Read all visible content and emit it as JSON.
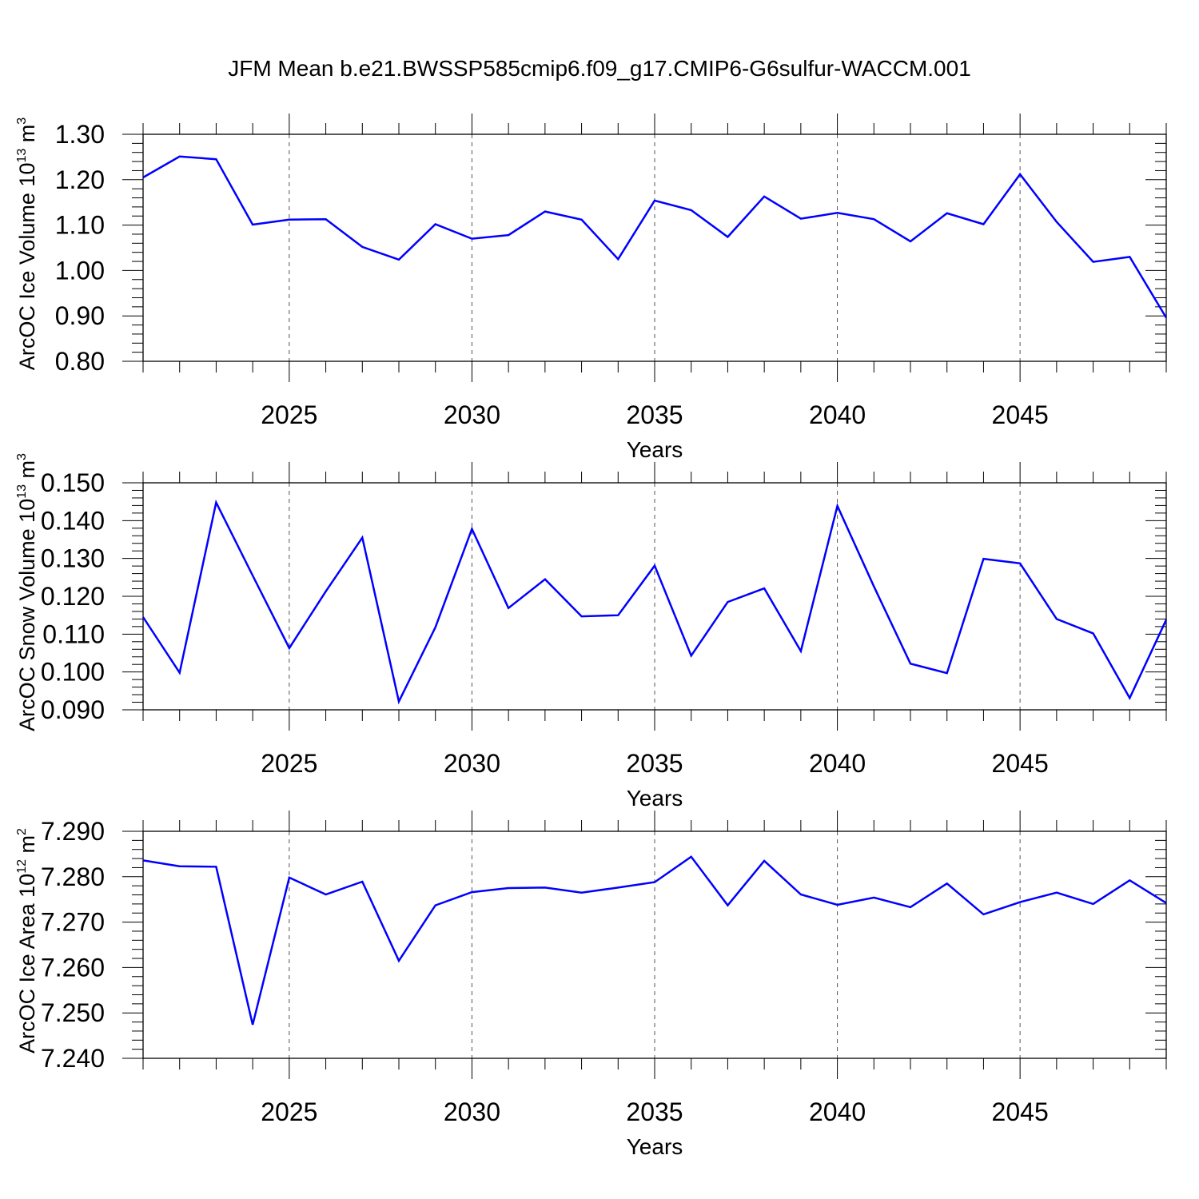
{
  "title": "JFM Mean b.e21.BWSSP585cmip6.f09_g17.CMIP6-G6sulfur-WACCM.001",
  "line_color": "#0000ff",
  "chart_data": [
    {
      "type": "line",
      "ylabel": "ArcOC Ice Volume 10",
      "ylabel_exp": "13",
      "ylabel_unit": " m",
      "ylabel_unit_exp": "3",
      "xlabel": "Years",
      "xlim": [
        2021,
        2049
      ],
      "ylim": [
        0.8,
        1.3
      ],
      "xticks": [
        2025,
        2030,
        2035,
        2040,
        2045
      ],
      "xticklabels": [
        "2025",
        "2030",
        "2035",
        "2040",
        "2045"
      ],
      "yticks": [
        0.8,
        0.9,
        1.0,
        1.1,
        1.2,
        1.3
      ],
      "yticklabels": [
        "0.80",
        "0.90",
        "1.00",
        "1.10",
        "1.20",
        "1.30"
      ],
      "grid": "vertical dashed at major x ticks",
      "x": [
        2021,
        2022,
        2023,
        2024,
        2025,
        2026,
        2027,
        2028,
        2029,
        2030,
        2031,
        2032,
        2033,
        2034,
        2035,
        2036,
        2037,
        2038,
        2039,
        2040,
        2041,
        2042,
        2043,
        2044,
        2045,
        2046,
        2047,
        2048,
        2049
      ],
      "y": [
        1.205,
        1.251,
        1.245,
        1.101,
        1.112,
        1.113,
        1.052,
        1.024,
        1.102,
        1.07,
        1.078,
        1.13,
        1.112,
        1.025,
        1.154,
        1.133,
        1.074,
        1.163,
        1.114,
        1.127,
        1.113,
        1.064,
        1.126,
        1.102,
        1.212,
        1.107,
        1.019,
        1.03,
        0.896
      ]
    },
    {
      "type": "line",
      "ylabel": "ArcOC Snow Volume 10",
      "ylabel_exp": "13",
      "ylabel_unit": " m",
      "ylabel_unit_exp": "3",
      "xlabel": "Years",
      "xlim": [
        2021,
        2049
      ],
      "ylim": [
        0.09,
        0.15
      ],
      "xticks": [
        2025,
        2030,
        2035,
        2040,
        2045
      ],
      "xticklabels": [
        "2025",
        "2030",
        "2035",
        "2040",
        "2045"
      ],
      "yticks": [
        0.09,
        0.1,
        0.11,
        0.12,
        0.13,
        0.14,
        0.15
      ],
      "yticklabels": [
        "0.090",
        "0.100",
        "0.110",
        "0.120",
        "0.130",
        "0.140",
        "0.150"
      ],
      "grid": "vertical dashed at major x ticks",
      "x": [
        2021,
        2022,
        2023,
        2024,
        2025,
        2026,
        2027,
        2028,
        2029,
        2030,
        2031,
        2032,
        2033,
        2034,
        2035,
        2036,
        2037,
        2038,
        2039,
        2040,
        2041,
        2042,
        2043,
        2044,
        2045,
        2046,
        2047,
        2048,
        2049
      ],
      "y": [
        0.1145,
        0.0998,
        0.1448,
        0.1255,
        0.1063,
        0.1213,
        0.1355,
        0.0922,
        0.1118,
        0.1378,
        0.1169,
        0.1245,
        0.1147,
        0.115,
        0.1281,
        0.1043,
        0.1185,
        0.1221,
        0.1055,
        0.1439,
        0.1226,
        0.1022,
        0.0997,
        0.1299,
        0.1287,
        0.114,
        0.1102,
        0.0931,
        0.1138
      ]
    },
    {
      "type": "line",
      "ylabel": "ArcOC Ice Area 10",
      "ylabel_exp": "12",
      "ylabel_unit": " m",
      "ylabel_unit_exp": "2",
      "xlabel": "Years",
      "xlim": [
        2021,
        2049
      ],
      "ylim": [
        7.24,
        7.29
      ],
      "xticks": [
        2025,
        2030,
        2035,
        2040,
        2045
      ],
      "xticklabels": [
        "2025",
        "2030",
        "2035",
        "2040",
        "2045"
      ],
      "yticks": [
        7.24,
        7.25,
        7.26,
        7.27,
        7.28,
        7.29
      ],
      "yticklabels": [
        "7.240",
        "7.250",
        "7.260",
        "7.270",
        "7.280",
        "7.290"
      ],
      "grid": "vertical dashed at major x ticks",
      "x": [
        2021,
        2022,
        2023,
        2024,
        2025,
        2026,
        2027,
        2028,
        2029,
        2030,
        2031,
        2032,
        2033,
        2034,
        2035,
        2036,
        2037,
        2038,
        2039,
        2040,
        2041,
        2042,
        2043,
        2044,
        2045,
        2046,
        2047,
        2048,
        2049
      ],
      "y": [
        7.2836,
        7.2823,
        7.2822,
        7.2474,
        7.2798,
        7.2761,
        7.2789,
        7.2615,
        7.2737,
        7.2766,
        7.2775,
        7.2776,
        7.2765,
        7.2776,
        7.2788,
        7.2844,
        7.2737,
        7.2835,
        7.2761,
        7.2738,
        7.2754,
        7.2733,
        7.2785,
        7.2717,
        7.2744,
        7.2765,
        7.274,
        7.2792,
        7.2742
      ]
    }
  ]
}
